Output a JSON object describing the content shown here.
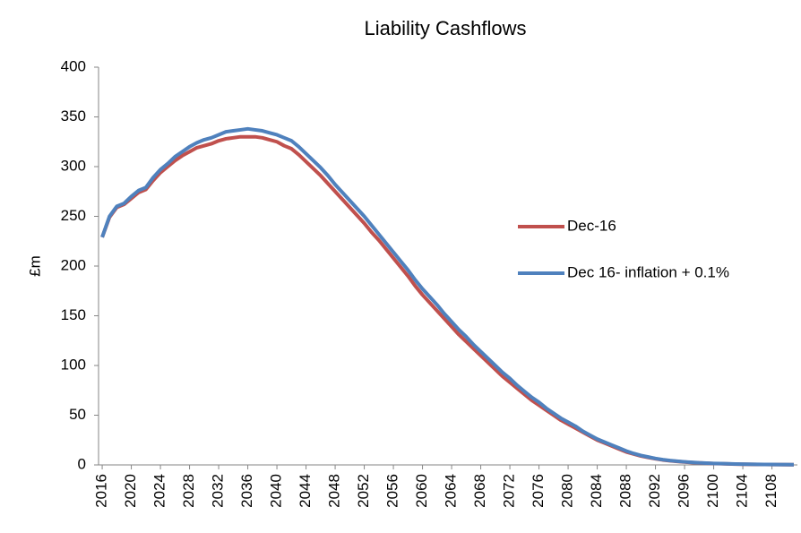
{
  "chart_data": {
    "type": "line",
    "title": "Liability Cashflows",
    "y_label": "£m",
    "x": [
      2016,
      2017,
      2018,
      2019,
      2020,
      2021,
      2022,
      2023,
      2024,
      2025,
      2026,
      2027,
      2028,
      2029,
      2030,
      2031,
      2032,
      2033,
      2034,
      2035,
      2036,
      2037,
      2038,
      2039,
      2040,
      2041,
      2042,
      2043,
      2044,
      2045,
      2046,
      2047,
      2048,
      2049,
      2050,
      2051,
      2052,
      2053,
      2054,
      2055,
      2056,
      2057,
      2058,
      2059,
      2060,
      2061,
      2062,
      2063,
      2064,
      2065,
      2066,
      2067,
      2068,
      2069,
      2070,
      2071,
      2072,
      2073,
      2074,
      2075,
      2076,
      2077,
      2078,
      2079,
      2080,
      2081,
      2082,
      2083,
      2084,
      2085,
      2086,
      2087,
      2088,
      2089,
      2090,
      2091,
      2092,
      2093,
      2094,
      2095,
      2096,
      2097,
      2098,
      2099,
      2100,
      2101,
      2102,
      2103,
      2104,
      2105,
      2106,
      2107,
      2108,
      2109,
      2110,
      2111
    ],
    "xlim": [
      2015.5,
      2111.5
    ],
    "xticks": [
      2016,
      2020,
      2024,
      2028,
      2032,
      2036,
      2040,
      2044,
      2048,
      2052,
      2056,
      2060,
      2064,
      2068,
      2072,
      2076,
      2080,
      2084,
      2088,
      2092,
      2096,
      2100,
      2104,
      2108
    ],
    "ylim": [
      0,
      400
    ],
    "yticks": [
      0,
      50,
      100,
      150,
      200,
      250,
      300,
      350,
      400
    ],
    "grid": false,
    "legend_position": "right",
    "series": [
      {
        "name": "Dec-16",
        "color": "#c0504d",
        "values": [
          229,
          249,
          259,
          262,
          268,
          274,
          277,
          286,
          294,
          300,
          306,
          311,
          315,
          319,
          321,
          323,
          326,
          328,
          329,
          330,
          330,
          330,
          329,
          327,
          325,
          321,
          318,
          312,
          305,
          298,
          291,
          283,
          275,
          267,
          259,
          251,
          243,
          234,
          226,
          217,
          208,
          199,
          190,
          180,
          171,
          163,
          155,
          147,
          139,
          131,
          124,
          117,
          110,
          103,
          96,
          89,
          83,
          77,
          71,
          65,
          60,
          55,
          50,
          45,
          41,
          37,
          33,
          29,
          25,
          22,
          19,
          16,
          13,
          11,
          9,
          7.5,
          6.2,
          5,
          4.2,
          3.5,
          2.9,
          2.4,
          2,
          1.7,
          1.4,
          1.2,
          1,
          0.8,
          0.7,
          0.6,
          0.5,
          0.4,
          0.3,
          0.3,
          0.2,
          0.2
        ]
      },
      {
        "name": "Dec 16- inflation + 0.1%",
        "color": "#4f81bd",
        "values": [
          229,
          250,
          260,
          263,
          270,
          276,
          279,
          289,
          297,
          303,
          310,
          315,
          320,
          324,
          327,
          329,
          332,
          335,
          336,
          337,
          338,
          337,
          336,
          334,
          332,
          329,
          326,
          320,
          313,
          306,
          299,
          291,
          282,
          274,
          266,
          258,
          250,
          241,
          232,
          223,
          214,
          205,
          196,
          186,
          177,
          169,
          161,
          152,
          144,
          136,
          129,
          121,
          114,
          107,
          100,
          93,
          87,
          80,
          74,
          68,
          63,
          57,
          52,
          47,
          43,
          39,
          34,
          30,
          26,
          23,
          20,
          17,
          14,
          11.5,
          9.5,
          8,
          6.5,
          5.3,
          4.4,
          3.7,
          3.1,
          2.6,
          2.1,
          1.8,
          1.5,
          1.3,
          1.1,
          0.9,
          0.8,
          0.7,
          0.6,
          0.5,
          0.4,
          0.3,
          0.3,
          0.2
        ]
      }
    ]
  }
}
